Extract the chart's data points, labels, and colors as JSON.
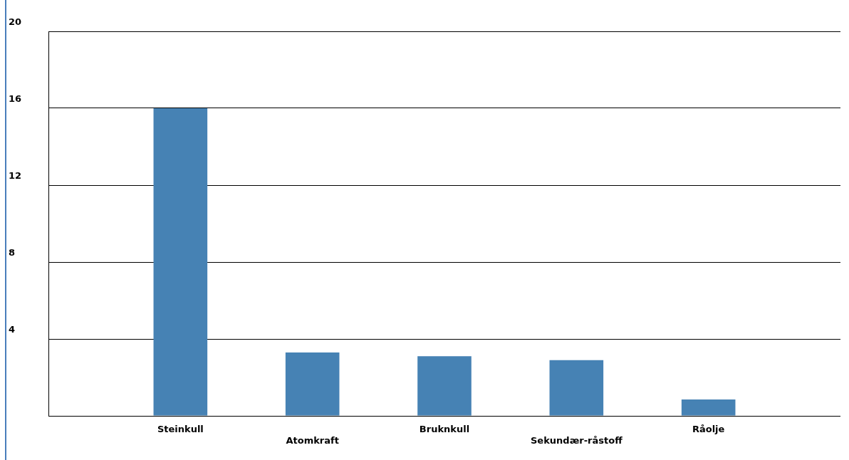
{
  "chart_data": {
    "type": "bar",
    "categories": [
      null,
      "Steinkull",
      "Atomkraft",
      "Bruknkull",
      "Sekundær-råstoff",
      "Råolje",
      null
    ],
    "values": [
      null,
      16,
      3.3,
      3.1,
      2.9,
      0.85,
      null
    ],
    "color": "#4682b4",
    "ylim": [
      0,
      20
    ],
    "yticks": [
      {
        "value": 0,
        "label": null
      },
      4,
      8,
      12,
      16,
      20
    ],
    "grid": "y"
  }
}
